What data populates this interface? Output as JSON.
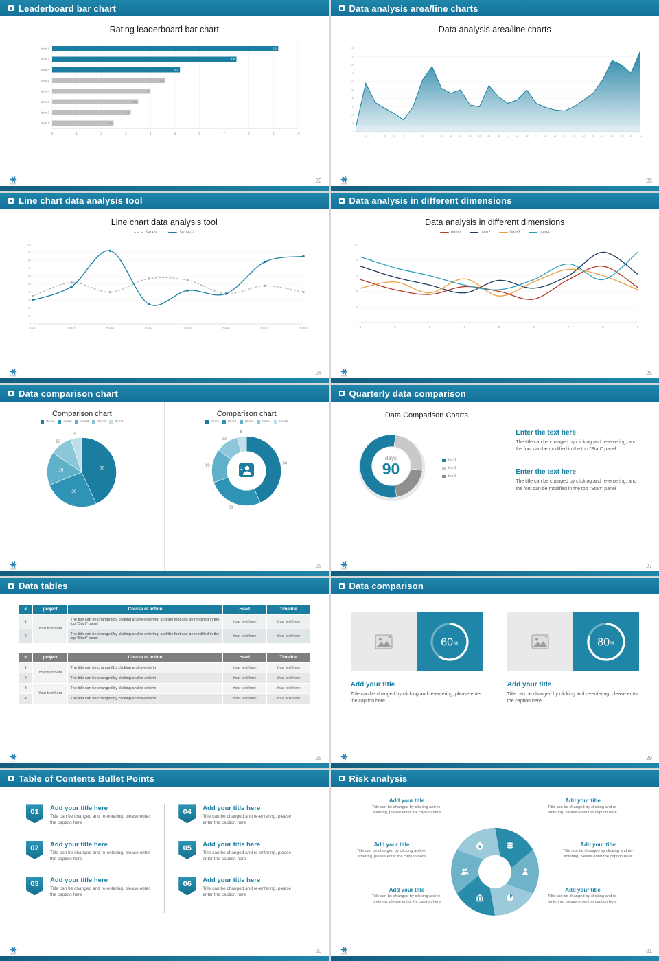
{
  "slides": {
    "s22": {
      "header": "Leaderboard bar chart",
      "page": "22",
      "title": "Rating leaderboard bar chart"
    },
    "s23": {
      "header": "Data analysis area/line charts",
      "page": "23",
      "title": "Data analysis area/line charts"
    },
    "s24": {
      "header": "Line chart data analysis tool",
      "page": "24",
      "title": "Line chart data analysis tool"
    },
    "s25": {
      "header": "Data analysis in different dimensions",
      "page": "25",
      "title": "Data analysis in different dimensions"
    },
    "s26": {
      "header": "Data comparison chart",
      "page": "26",
      "left_title": "Comparison chart",
      "right_title": "Comparison chart"
    },
    "s27": {
      "header": "Quarterly data comparison",
      "page": "27",
      "title": "Data Comparison Charts",
      "blocks": [
        {
          "heading": "Enter the text here",
          "body": "The title can be changed by clicking and re-entering, and the font can be modified in the top \"Start\" panel"
        },
        {
          "heading": "Enter the text here",
          "body": "The title can be changed by clicking and re-entering, and the font can be modified in the top \"Start\" panel"
        }
      ]
    },
    "s28": {
      "header": "Data tables",
      "page": "28",
      "table1": {
        "headers": [
          "#",
          "project",
          "Course of action",
          "Head",
          "Timeline"
        ],
        "project": "Your text here",
        "rows": [
          {
            "num": "1",
            "course": "The title can be changed by clicking and re-entering, and the font can be modified in the top \"Start\" panel",
            "head": "Your text here",
            "timeline": "Your text here"
          },
          {
            "num": "2",
            "course": "The title can be changed by clicking and re-entering, and the font can be modified in the top \"Start\" panel",
            "head": "Your text here",
            "timeline": "Your text here"
          }
        ]
      },
      "table2": {
        "headers": [
          "#",
          "project",
          "Course of action",
          "Head",
          "Timeline"
        ],
        "project1": "Your text here",
        "project2": "Your text here",
        "rows": [
          {
            "num": "1",
            "course": "The title can be changed by clicking and re-enterin",
            "head": "Your text here",
            "timeline": "Your text here"
          },
          {
            "num": "2",
            "course": "The title can be changed by clicking and re-enterin",
            "head": "Your text here",
            "timeline": "Your text here"
          },
          {
            "num": "3",
            "course": "The title can be changed by clicking and re-enterin",
            "head": "Your text here",
            "timeline": "Your text here"
          },
          {
            "num": "4",
            "course": "The title can be changed by clicking and re-enterin",
            "head": "Your text here",
            "timeline": "Your text here"
          }
        ]
      }
    },
    "s29": {
      "header": "Data comparison",
      "page": "29",
      "cards": [
        {
          "title": "Add your title",
          "caption": "Title can be changed by clicking and re-entering, please enter the caption here"
        },
        {
          "title": "Add your title",
          "caption": "Title can be changed by clicking and re-entering, please enter the caption here"
        }
      ]
    },
    "s30": {
      "header": "Table of Contents Bullet Points",
      "page": "30",
      "items": [
        {
          "num": "01",
          "title": "Add your title here",
          "caption": "Title can be changed and re-entering, please enter the caption here"
        },
        {
          "num": "02",
          "title": "Add your title here",
          "caption": "Title can be changed and re-entering, please enter the caption here"
        },
        {
          "num": "03",
          "title": "Add your title here",
          "caption": "Title can be changed and re-entering, please enter the caption here"
        },
        {
          "num": "04",
          "title": "Add your title here",
          "caption": "Title can be changed and re-entering, please enter the caption here"
        },
        {
          "num": "05",
          "title": "Add your title here",
          "caption": "Title can be changed and re-entering, please enter the caption here"
        },
        {
          "num": "06",
          "title": "Add your title here",
          "caption": "Title can be changed and re-entering, please enter the caption here"
        }
      ]
    },
    "s31": {
      "header": "Risk analysis",
      "page": "31",
      "items": [
        {
          "title": "Add your title",
          "caption": "Title can be changed by clicking and re-entering, please enter the caption here"
        },
        {
          "title": "Add your title",
          "caption": "Title can be changed by clicking and re-entering, please enter the caption here"
        },
        {
          "title": "Add your title",
          "caption": "Title can be changed by clicking and re-entering, please enter the caption here"
        },
        {
          "title": "Add your title",
          "caption": "Title can be changed by clicking and re-entering, please enter the caption here"
        },
        {
          "title": "Add your title",
          "caption": "Title can be changed by clicking and re-entering, please enter the caption here"
        },
        {
          "title": "Add your title",
          "caption": "Title can be changed by clicking and re-entering, please enter the caption here"
        }
      ]
    }
  },
  "chart_data": [
    {
      "type": "bar",
      "orientation": "horizontal",
      "title": "Rating leaderboard bar chart",
      "categories": [
        "Item 8",
        "Item 7",
        "Item 6",
        "Item 5",
        "Item 4",
        "Item 3",
        "Item 2",
        "Item 1"
      ],
      "values": [
        9.2,
        7.5,
        5.2,
        4.6,
        4,
        3.5,
        3.2,
        2.5
      ],
      "colors": [
        "#1b7ea1",
        "#1b7ea1",
        "#1b7ea1",
        "#bfbfbf",
        "#bfbfbf",
        "#bfbfbf",
        "#bfbfbf",
        "#bfbfbf"
      ],
      "xlim": [
        0,
        10
      ],
      "xticks": [
        0,
        1,
        2,
        3,
        4,
        5,
        6,
        7,
        8,
        9,
        10
      ],
      "grid": true
    },
    {
      "type": "area",
      "title": "Data analysis area/line charts",
      "color": "#1b7ea1",
      "x": [
        1,
        2,
        3,
        4,
        5,
        6,
        7,
        8,
        9,
        10,
        11,
        12,
        13,
        14,
        15,
        16,
        17,
        18,
        19,
        20,
        21,
        22,
        23,
        24,
        25,
        26,
        27,
        28,
        29,
        30,
        31
      ],
      "values": [
        8,
        58,
        35,
        28,
        22,
        14,
        30,
        62,
        78,
        52,
        46,
        50,
        32,
        30,
        55,
        42,
        34,
        38,
        50,
        34,
        29,
        26,
        25,
        30,
        38,
        46,
        62,
        85,
        80,
        70,
        97
      ],
      "ylim": [
        0,
        100
      ],
      "ystep": 10,
      "grid": true
    },
    {
      "type": "line",
      "title": "Line chart data analysis tool",
      "ylim": [
        0,
        100
      ],
      "ystep": 10,
      "categories": [
        "Data1",
        "Data2",
        "Data3",
        "Data4",
        "Data5",
        "Data6",
        "Data7",
        "Data8"
      ],
      "series": [
        {
          "name": "Series 1",
          "color": "#b3b3b3",
          "dash": true,
          "markers": true,
          "values": [
            35,
            52,
            40,
            57,
            55,
            38,
            48,
            40
          ]
        },
        {
          "name": "Series 2",
          "color": "#1b7ea1",
          "dash": false,
          "markers": true,
          "values": [
            30,
            47,
            92,
            25,
            42,
            38,
            78,
            85
          ]
        }
      ],
      "legend_position": "top"
    },
    {
      "type": "line",
      "title": "Data analysis in different dimensions",
      "ylim": [
        0,
        100
      ],
      "ystep": 20,
      "categories": [
        "1",
        "2",
        "3",
        "4",
        "5",
        "6",
        "7",
        "8",
        "9"
      ],
      "series": [
        {
          "name": "Item1",
          "color": "#b03a2e",
          "values": [
            55,
            42,
            36,
            46,
            40,
            30,
            55,
            72,
            45
          ]
        },
        {
          "name": "Item2",
          "color": "#1f3b5c",
          "values": [
            72,
            58,
            48,
            38,
            54,
            44,
            60,
            90,
            62
          ]
        },
        {
          "name": "Item3",
          "color": "#e8a13a",
          "values": [
            44,
            52,
            38,
            56,
            34,
            52,
            68,
            60,
            42
          ]
        },
        {
          "name": "Item4",
          "color": "#2d9db8",
          "values": [
            84,
            70,
            60,
            48,
            42,
            55,
            75,
            55,
            90
          ]
        }
      ],
      "legend_position": "top"
    },
    {
      "type": "pie",
      "title": "Comparison chart",
      "labels": [
        "Item1",
        "Item2",
        "Item3",
        "Item4",
        "Item5"
      ],
      "values": [
        50,
        30,
        18,
        12,
        6
      ],
      "colors": [
        "#1b7ea1",
        "#2e93b5",
        "#5fb0c9",
        "#8cc6d9",
        "#bfdeea"
      ]
    },
    {
      "type": "donut",
      "title": "Comparison chart",
      "inner": 0.56,
      "show_labels": true,
      "labels": [
        "Item1",
        "Item2",
        "Item3",
        "Item4",
        "Item5"
      ],
      "values": [
        50,
        30,
        18,
        12,
        5
      ],
      "colors": [
        "#1b7ea1",
        "#2e93b5",
        "#5fb0c9",
        "#8cc6d9",
        "#bfdeea"
      ]
    },
    {
      "type": "donut",
      "title": "Data Comparison Charts",
      "inner": 0.62,
      "start": 170,
      "shadow": true,
      "labels": [
        "Item1",
        "Item2",
        "Item3"
      ],
      "values": [
        55,
        25,
        20
      ],
      "colors": [
        "#1b7ea1",
        "#c9c9c9",
        "#8f8f8f"
      ],
      "center_top": "days",
      "center_value": "90"
    },
    {
      "type": "ring",
      "value": 60,
      "suffix": "%",
      "color": "#ffffff",
      "track": "rgba(255,255,255,0.35)"
    },
    {
      "type": "ring",
      "value": 80,
      "suffix": "%",
      "color": "#ffffff",
      "track": "rgba(255,255,255,0.35)"
    }
  ]
}
